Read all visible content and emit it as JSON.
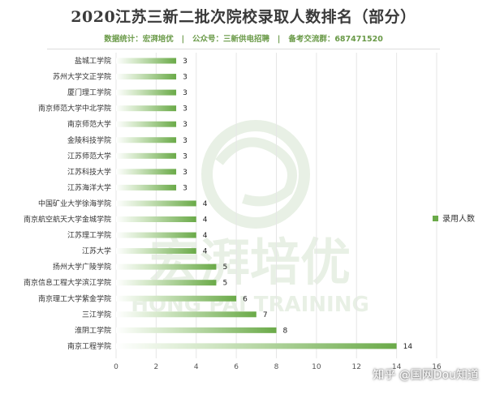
{
  "header": {
    "title": "2020江苏三新二批次院校录取人数排名（部分）",
    "subtitle": "数据统计：宏湃培优   |   公众号：三新供电招聘   |   备考交流群：687471520"
  },
  "watermark": {
    "brand": "宏湃培优",
    "brand_en": "HONG PAI TRAINING"
  },
  "footer": {
    "text": "知乎 @国网Dou知道"
  },
  "colors": {
    "bar_start": "#ffffff",
    "bar_end": "#6aaa48",
    "legend_swatch": "#6aaa48",
    "watermark": "#d7e4d0"
  },
  "chart_data": {
    "type": "bar",
    "orientation": "horizontal",
    "categories": [
      "盐城工学院",
      "苏州大学文正学院",
      "厦门理工学院",
      "南京师范大学中北学院",
      "南京师范大学",
      "金陵科技学院",
      "江苏师范大学",
      "江苏科技大学",
      "江苏海洋大学",
      "中国矿业大学徐海学院",
      "南京航空航天大学金城学院",
      "江苏理工学院",
      "江苏大学",
      "扬州大学广陵学院",
      "南京信息工程大学滨江学院",
      "南京理工大学紫金学院",
      "三江学院",
      "淮阴工学院",
      "南京工程学院"
    ],
    "series": [
      {
        "name": "录用人数",
        "values": [
          3,
          3,
          3,
          3,
          3,
          3,
          3,
          3,
          3,
          4,
          4,
          4,
          4,
          5,
          5,
          6,
          7,
          8,
          14
        ]
      }
    ],
    "xlim": [
      0,
      16
    ],
    "xticks": [
      0,
      2,
      4,
      6,
      8,
      10,
      12,
      14,
      16
    ],
    "grid": true,
    "legend": "right"
  }
}
